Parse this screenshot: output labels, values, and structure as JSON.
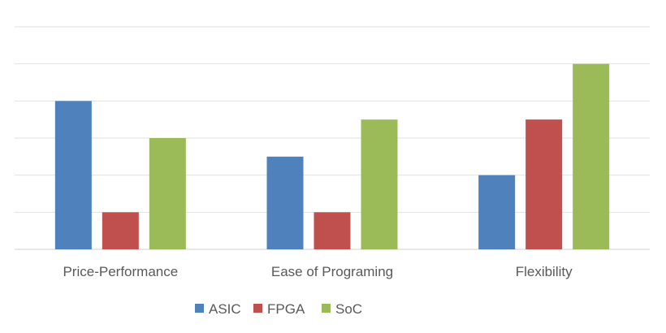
{
  "chart_data": {
    "type": "bar",
    "categories": [
      "Price-Performance",
      "Ease of Programing",
      "Flexibility"
    ],
    "series": [
      {
        "name": "ASIC",
        "color": "#4f81bd",
        "values": [
          4,
          2.5,
          2
        ]
      },
      {
        "name": "FPGA",
        "color": "#c0504d",
        "values": [
          1,
          1,
          3.5
        ]
      },
      {
        "name": "SoC",
        "color": "#9bbb59",
        "values": [
          3,
          3.5,
          5
        ]
      }
    ],
    "title": "",
    "xlabel": "",
    "ylabel": "",
    "ylim": [
      0,
      6
    ],
    "grid": true,
    "legend_position": "bottom"
  }
}
